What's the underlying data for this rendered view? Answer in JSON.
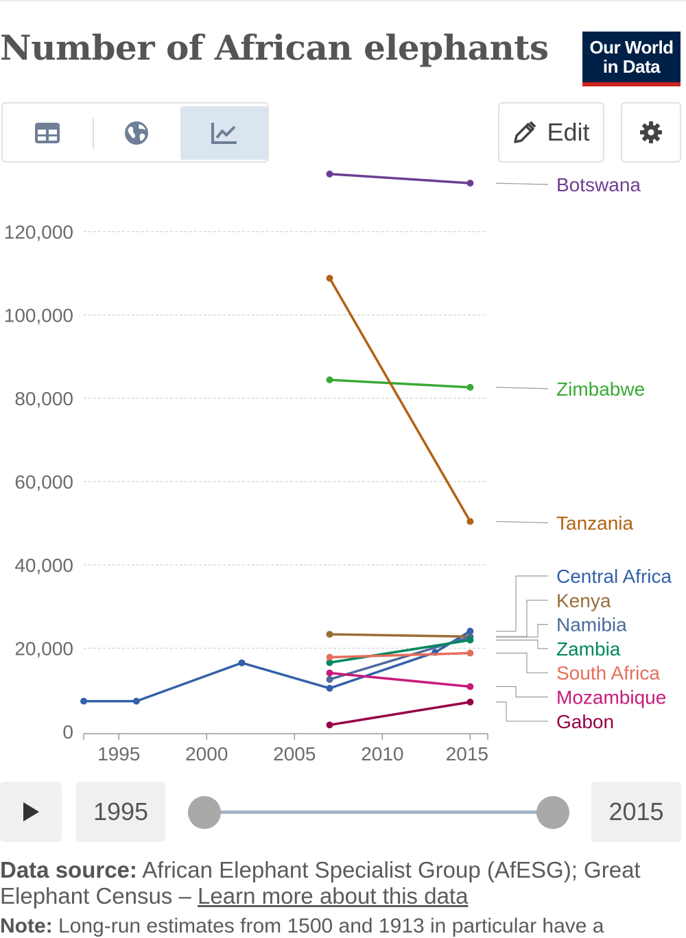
{
  "header": {
    "title": "Number of African elephants",
    "logo_line1": "Our World",
    "logo_line2": "in Data"
  },
  "toolbar": {
    "tabs": [
      "table",
      "map",
      "chart"
    ],
    "active_tab": "chart",
    "edit_label": "Edit",
    "icons": {
      "table": "table-icon",
      "map": "globe-icon",
      "chart": "line-chart-icon",
      "edit": "pencil-icon",
      "settings": "gear-icon"
    }
  },
  "colors": {
    "accent_tab_bg": "#dbe5f0",
    "logo_bg": "#002147",
    "logo_stripe": "#ce261e"
  },
  "chart_data": {
    "type": "line",
    "title": "Number of African elephants",
    "xlabel": "",
    "ylabel": "",
    "xlim": [
      1993,
      2016
    ],
    "ylim": [
      0,
      130000
    ],
    "x_ticks": [
      "1995",
      "2000",
      "2005",
      "2010",
      "2015"
    ],
    "y_ticks": [
      "0",
      "20,000",
      "40,000",
      "60,000",
      "80,000",
      "100,000",
      "120,000"
    ],
    "grid": "horizontal dashed",
    "legend": "inline labels at right end of lines",
    "series": [
      {
        "name": "Botswana",
        "color": "#6d3e91",
        "x": [
          2007,
          2015
        ],
        "y": [
          133829,
          131626
        ]
      },
      {
        "name": "Zimbabwe",
        "color": "#38aa34",
        "x": [
          2007,
          2015
        ],
        "y": [
          84416,
          82630
        ]
      },
      {
        "name": "Tanzania",
        "color": "#b16214",
        "x": [
          2007,
          2015
        ],
        "y": [
          108816,
          50433
        ]
      },
      {
        "name": "Central Africa",
        "color": "#3360a9",
        "x": [
          1993,
          1996,
          2002,
          2007,
          2013,
          2015
        ],
        "y": [
          7300,
          7300,
          16500,
          10400,
          19000,
          24100
        ]
      },
      {
        "name": "Kenya",
        "color": "#996d39",
        "x": [
          2007,
          2015
        ],
        "y": [
          23353,
          22809
        ]
      },
      {
        "name": "Namibia",
        "color": "#4c6a9c",
        "x": [
          2007,
          2015
        ],
        "y": [
          12531,
          22711
        ]
      },
      {
        "name": "Zambia",
        "color": "#00875e",
        "x": [
          2007,
          2015
        ],
        "y": [
          16562,
          21967
        ]
      },
      {
        "name": "South Africa",
        "color": "#e56e5a",
        "x": [
          2007,
          2015
        ],
        "y": [
          17847,
          18841
        ]
      },
      {
        "name": "Mozambique",
        "color": "#c61b7c",
        "x": [
          2007,
          2015
        ],
        "y": [
          14079,
          10800
        ]
      },
      {
        "name": "Gabon",
        "color": "#970046",
        "x": [
          2007,
          2015
        ],
        "y": [
          1600,
          7100
        ]
      }
    ]
  },
  "timeline": {
    "start_year": "1995",
    "end_year": "2015"
  },
  "footer": {
    "source_label": "Data source:",
    "source_text": "African Elephant Specialist Group (AfESG); Great Elephant Census –",
    "source_link": "Learn more about this data",
    "note_label": "Note:",
    "note_text": "Long-run estimates from 1500 and 1913 in particular have a"
  }
}
